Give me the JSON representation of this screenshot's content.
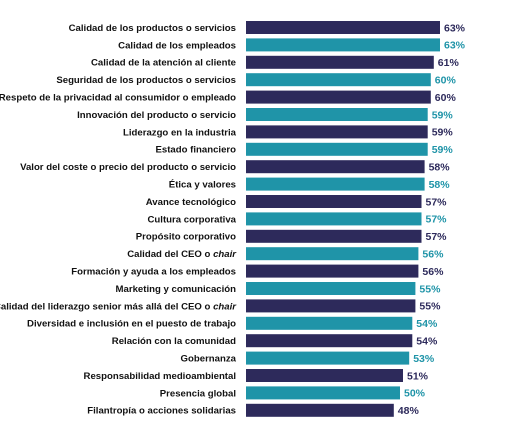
{
  "chart_data": {
    "type": "bar",
    "orientation": "horizontal",
    "title": "",
    "xlabel": "",
    "ylabel": "",
    "unit": "%",
    "xlim": [
      0,
      63
    ],
    "grid": false,
    "legend": "none",
    "colors": {
      "dark": "#2d2a5b",
      "teal": "#1f94a8"
    },
    "categories": [
      "Calidad de los productos o servicios",
      "Calidad de los empleados",
      "Calidad de la atención al cliente",
      "Seguridad de los productos o servicios",
      "Respeto de la privacidad al consumidor o empleado",
      "Innovación del producto o servicio",
      "Liderazgo en la industria",
      "Estado financiero",
      "Valor del coste o precio del producto o servicio",
      "Ética y valores",
      "Avance tecnológico",
      "Cultura corporativa",
      "Propósito corporativo",
      "Calidad del CEO o chair",
      "Formación y ayuda a los empleados",
      "Marketing y comunicación",
      "Calidad del liderazgo senior más allá del CEO o chair",
      "Diversidad e inclusión en el puesto de trabajo",
      "Relación con la comunidad",
      "Gobernanza",
      "Responsabilidad medioambiental",
      "Presencia global",
      "Filantropía o acciones solidarias"
    ],
    "label_parts": [
      null,
      null,
      null,
      null,
      null,
      null,
      null,
      null,
      null,
      null,
      null,
      null,
      null,
      {
        "normal": "Calidad del CEO o ",
        "italic": "chair"
      },
      null,
      null,
      {
        "normal": "Calidad del liderazgo senior más allá del CEO o ",
        "italic": "chair"
      },
      null,
      null,
      null,
      null,
      null,
      null
    ],
    "values": [
      63,
      63,
      61,
      60,
      60,
      59,
      59,
      59,
      58,
      58,
      57,
      57,
      57,
      56,
      56,
      55,
      55,
      54,
      54,
      53,
      51,
      50,
      48
    ],
    "value_labels": [
      "63%",
      "63%",
      "61%",
      "60%",
      "60%",
      "59%",
      "59%",
      "59%",
      "58%",
      "58%",
      "57%",
      "57%",
      "57%",
      "56%",
      "56%",
      "55%",
      "55%",
      "54%",
      "54%",
      "53%",
      "51%",
      "50%",
      "48%"
    ],
    "bar_colors": [
      "dark",
      "teal",
      "dark",
      "teal",
      "dark",
      "teal",
      "dark",
      "teal",
      "dark",
      "teal",
      "dark",
      "teal",
      "dark",
      "teal",
      "dark",
      "teal",
      "dark",
      "teal",
      "dark",
      "teal",
      "dark",
      "teal",
      "dark"
    ]
  }
}
